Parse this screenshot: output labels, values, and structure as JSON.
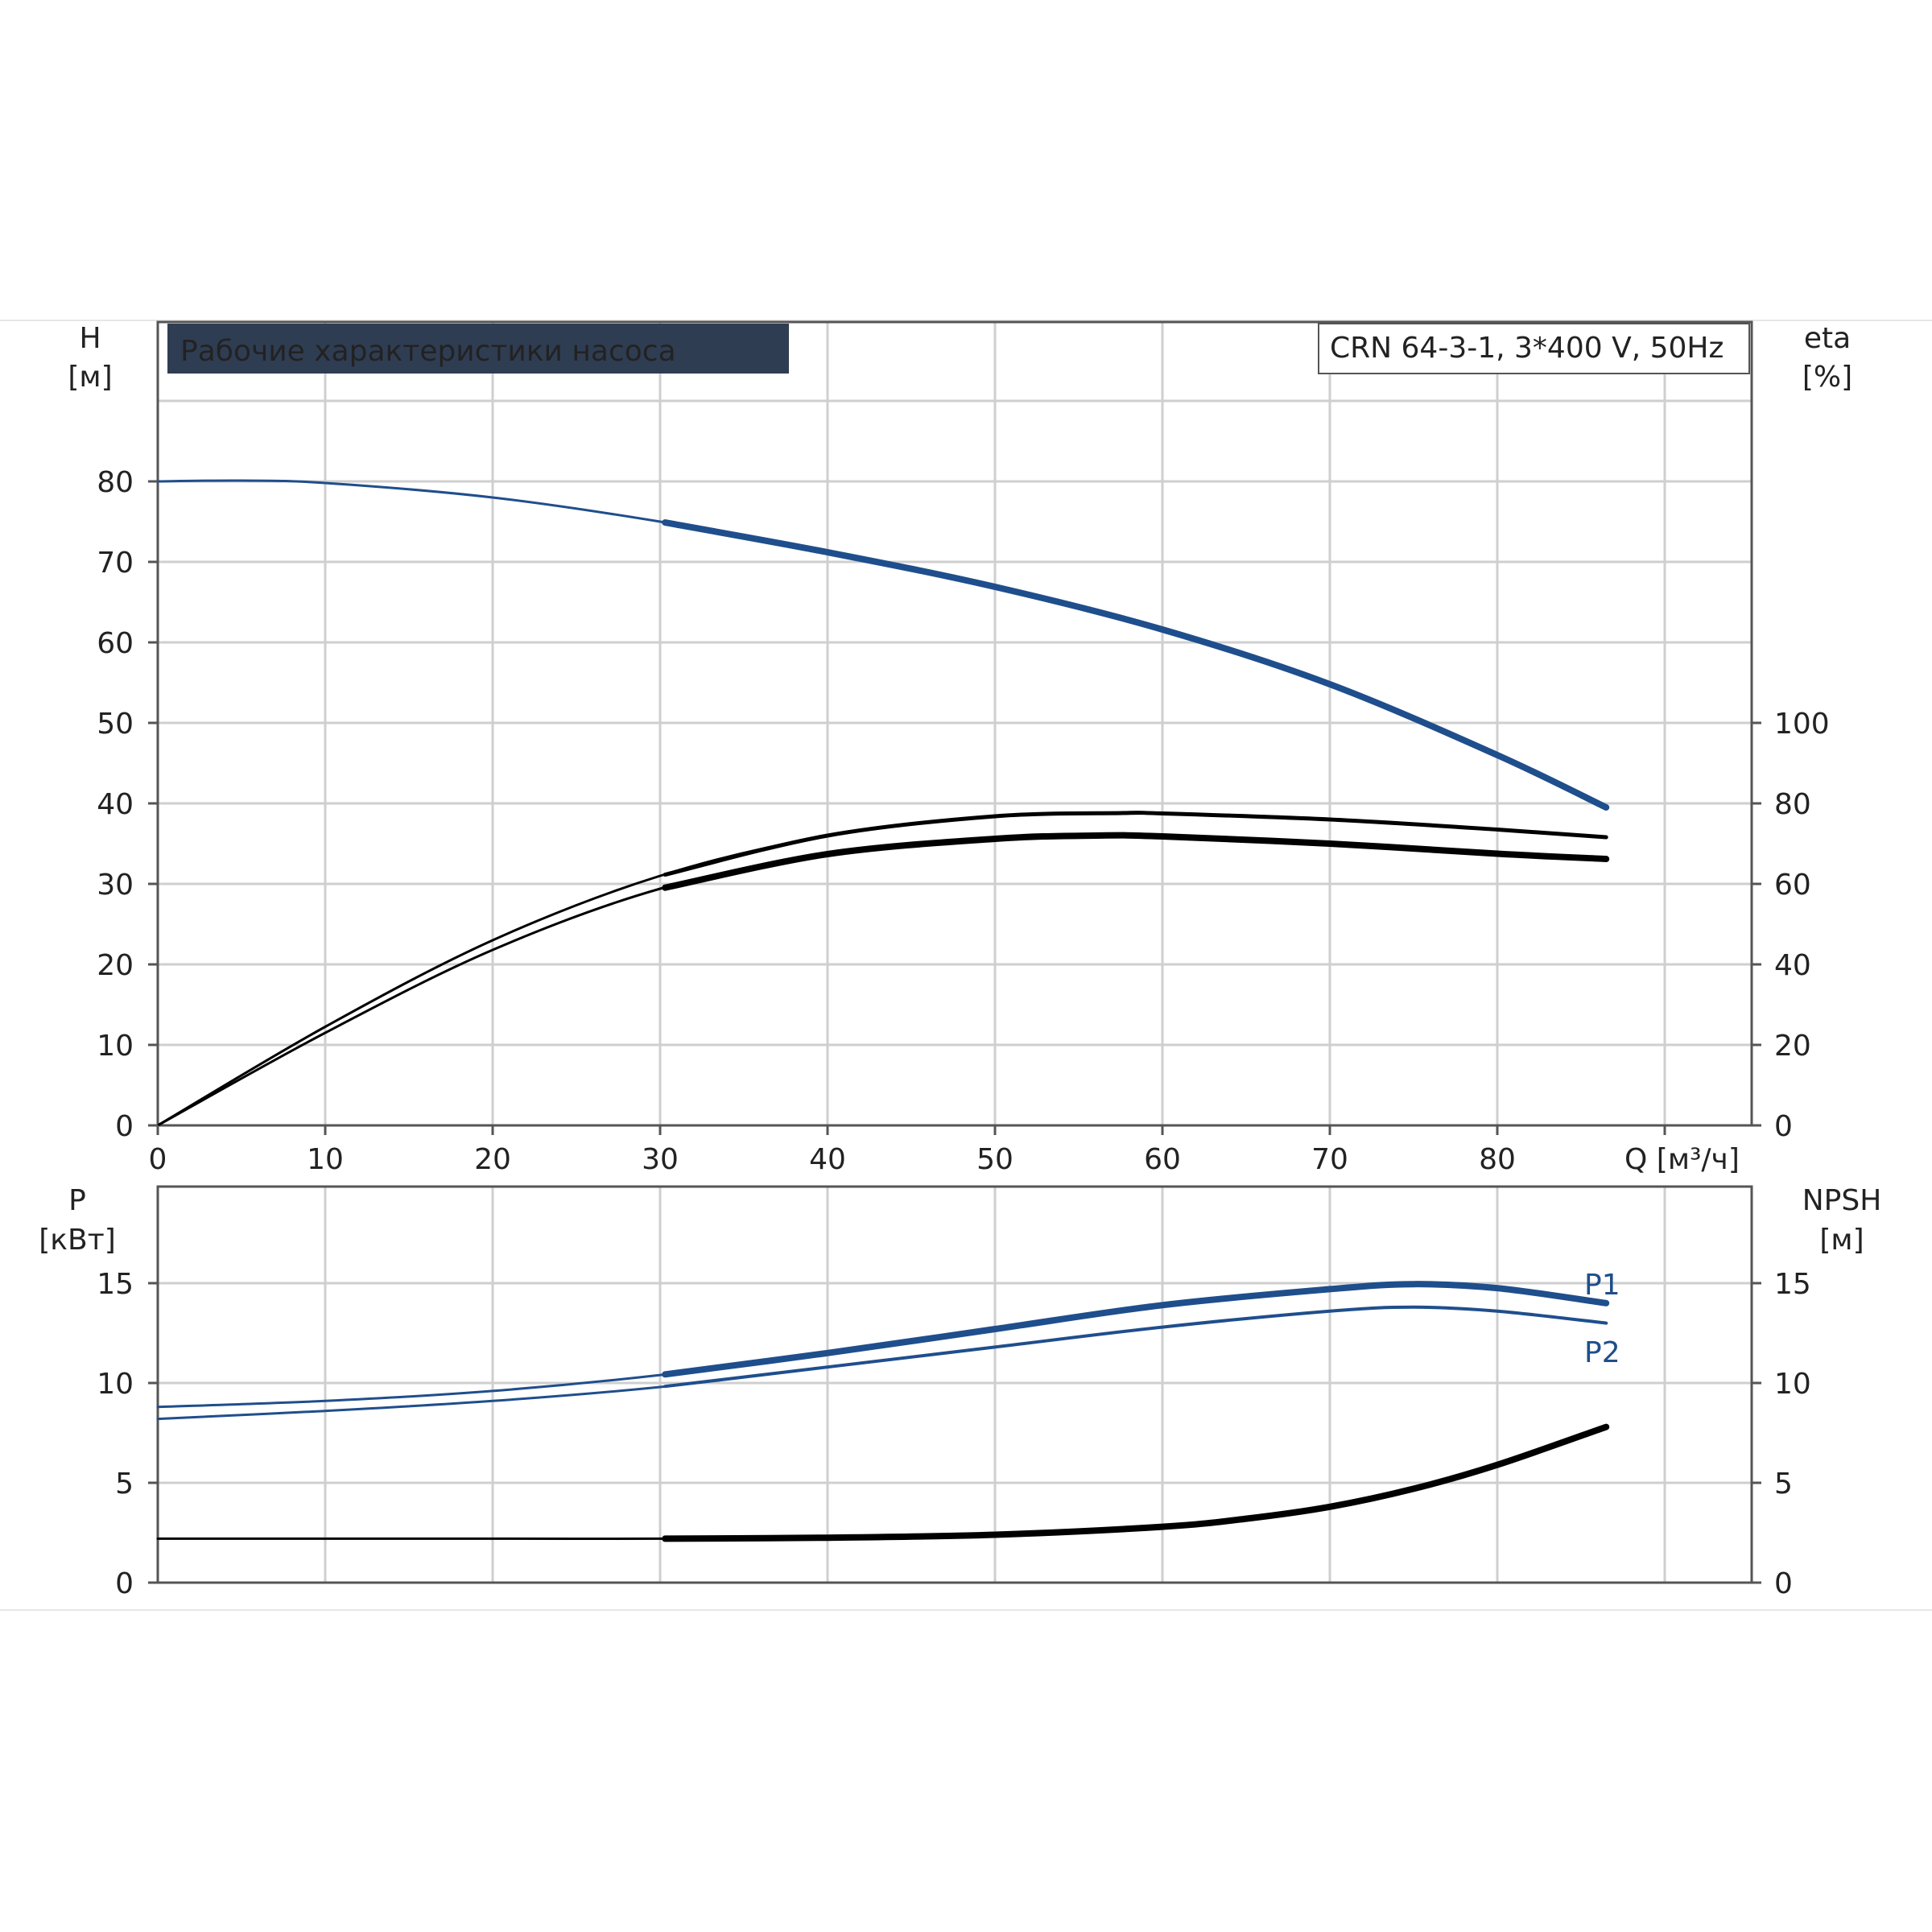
{
  "chart_data": [
    {
      "type": "line",
      "title": "Рабочие характеристики насоса",
      "model": "CRN 64-3-1, 3*400 V, 50Hz",
      "xlabel": "Q [м³/ч]",
      "ylabel_left": "H",
      "ylabel_left_unit": "[м]",
      "ylabel_right": "eta",
      "ylabel_right_unit": "[%]",
      "xlim": [
        0,
        95
      ],
      "ylim_left": [
        0,
        90
      ],
      "ylim_right": [
        0,
        180
      ],
      "x_ticks": [
        "0",
        "10",
        "20",
        "30",
        "40",
        "50",
        "60",
        "70",
        "80"
      ],
      "y_left_ticks": [
        "0",
        "10",
        "20",
        "30",
        "40",
        "50",
        "60",
        "70",
        "80"
      ],
      "y_right_ticks": [
        "0",
        "20",
        "40",
        "60",
        "80",
        "100"
      ],
      "grid": true,
      "colors": {
        "head": "#1f4e8c",
        "eta": "#000000"
      },
      "series": [
        {
          "key": "head",
          "axis": "left",
          "x": [
            0,
            5,
            10,
            20,
            30,
            40,
            50,
            60,
            70,
            80,
            86.5
          ],
          "y": [
            80,
            80.1,
            79.8,
            78,
            75,
            71.2,
            66.9,
            61.6,
            54.8,
            46,
            39.5
          ]
        },
        {
          "key": "eta_thin",
          "axis": "right",
          "x": [
            0,
            10,
            20,
            30,
            40,
            50,
            57.6,
            60,
            70,
            80,
            86.5
          ],
          "y": [
            0,
            24.5,
            46,
            62,
            72,
            76.8,
            77.6,
            77.5,
            76,
            73.5,
            71.6
          ]
        },
        {
          "key": "eta_thick",
          "axis": "right",
          "x": [
            0,
            10,
            20,
            30,
            40,
            50,
            56,
            60,
            70,
            80,
            86.5
          ],
          "y": [
            0,
            23,
            43.6,
            58.8,
            67.4,
            71.2,
            72,
            71.8,
            70,
            67.5,
            66.2
          ]
        }
      ]
    },
    {
      "type": "line",
      "ylabel_left": "P",
      "ylabel_left_unit": "[кВт]",
      "ylabel_right": "NPSH",
      "ylabel_right_unit": "[м]",
      "xlim": [
        0,
        95
      ],
      "ylim_left": [
        0,
        20
      ],
      "ylim_right": [
        0,
        20
      ],
      "y_left_ticks": [
        "0",
        "5",
        "10",
        "15"
      ],
      "y_right_ticks": [
        "0",
        "5",
        "10",
        "15"
      ],
      "grid": true,
      "colors": {
        "p": "#1f4e8c",
        "npsh": "#000000"
      },
      "series": [
        {
          "name": "P1",
          "axis": "left",
          "x": [
            0,
            10,
            20,
            30,
            40,
            50,
            60,
            70,
            75,
            80,
            86.5
          ],
          "y": [
            8.8,
            9.1,
            9.6,
            10.4,
            11.5,
            12.7,
            13.9,
            14.7,
            14.95,
            14.75,
            14
          ]
        },
        {
          "name": "P2",
          "axis": "left",
          "x": [
            0,
            10,
            20,
            30,
            40,
            50,
            60,
            70,
            75,
            80,
            86.5
          ],
          "y": [
            8.2,
            8.6,
            9.1,
            9.8,
            10.8,
            11.8,
            12.8,
            13.6,
            13.8,
            13.6,
            13
          ]
        },
        {
          "key": "npsh",
          "axis": "right",
          "x": [
            0,
            10,
            20,
            30,
            40,
            50,
            60,
            65,
            70,
            75,
            80,
            86.5
          ],
          "y": [
            2.2,
            2.2,
            2.2,
            2.2,
            2.25,
            2.4,
            2.8,
            3.2,
            3.8,
            4.7,
            5.9,
            7.8
          ]
        }
      ]
    }
  ]
}
